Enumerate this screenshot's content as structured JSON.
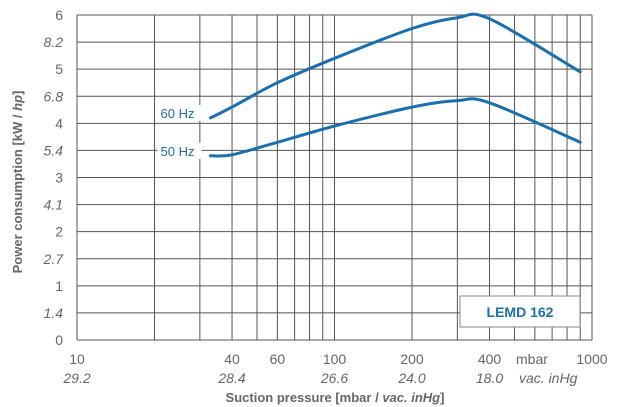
{
  "chart_data": {
    "type": "line",
    "title": "",
    "xlabel": {
      "prefix": "Suction pressure [mbar / ",
      "italic": "vac. inHg",
      "suffix": "]"
    },
    "ylabel": {
      "prefix": "Power consumption [kW / ",
      "italic": "hp",
      "suffix": "]"
    },
    "x_scale": "log",
    "xlim": [
      10,
      1000
    ],
    "ylim": [
      0,
      6
    ],
    "grid": true,
    "x_ticks": [
      {
        "value": 10,
        "label": "10",
        "secondary": "29.2"
      },
      {
        "value": 40,
        "label": "40",
        "secondary": "28.4"
      },
      {
        "value": 60,
        "label": "60",
        "secondary": ""
      },
      {
        "value": 100,
        "label": "100",
        "secondary": "26.6"
      },
      {
        "value": 200,
        "label": "200",
        "secondary": "24.0"
      },
      {
        "value": 400,
        "label": "400",
        "secondary": "18.0"
      },
      {
        "value": 1000,
        "label": "1000",
        "secondary": ""
      }
    ],
    "x_unit_label": "mbar",
    "x_secondary_unit_label": "vac. inHg",
    "y_ticks": [
      {
        "value": 0,
        "label": "0"
      },
      {
        "value": 1,
        "label": "1"
      },
      {
        "value": 2,
        "label": "2"
      },
      {
        "value": 3,
        "label": "3"
      },
      {
        "value": 4,
        "label": "4"
      },
      {
        "value": 5,
        "label": "5"
      },
      {
        "value": 6,
        "label": "6"
      }
    ],
    "y_secondary_ticks": [
      {
        "value": 0.5,
        "label": "1.4"
      },
      {
        "value": 1.5,
        "label": "2.7"
      },
      {
        "value": 2.5,
        "label": "4.1"
      },
      {
        "value": 3.5,
        "label": "5.4"
      },
      {
        "value": 4.5,
        "label": "6.8"
      },
      {
        "value": 5.5,
        "label": "8.2"
      }
    ],
    "series": [
      {
        "name": "60 Hz",
        "color": "#1a6fae",
        "x": [
          33,
          40,
          60,
          100,
          200,
          300,
          400,
          900
        ],
        "y": [
          4.1,
          4.3,
          4.75,
          5.2,
          5.75,
          5.95,
          5.93,
          4.95
        ]
      },
      {
        "name": "50 Hz",
        "color": "#1a6fae",
        "x": [
          33,
          40,
          60,
          100,
          200,
          300,
          400,
          900
        ],
        "y": [
          3.4,
          3.42,
          3.65,
          3.95,
          4.3,
          4.42,
          4.38,
          3.65
        ]
      }
    ],
    "annotations": [
      {
        "text": "LEMD 162"
      }
    ]
  }
}
